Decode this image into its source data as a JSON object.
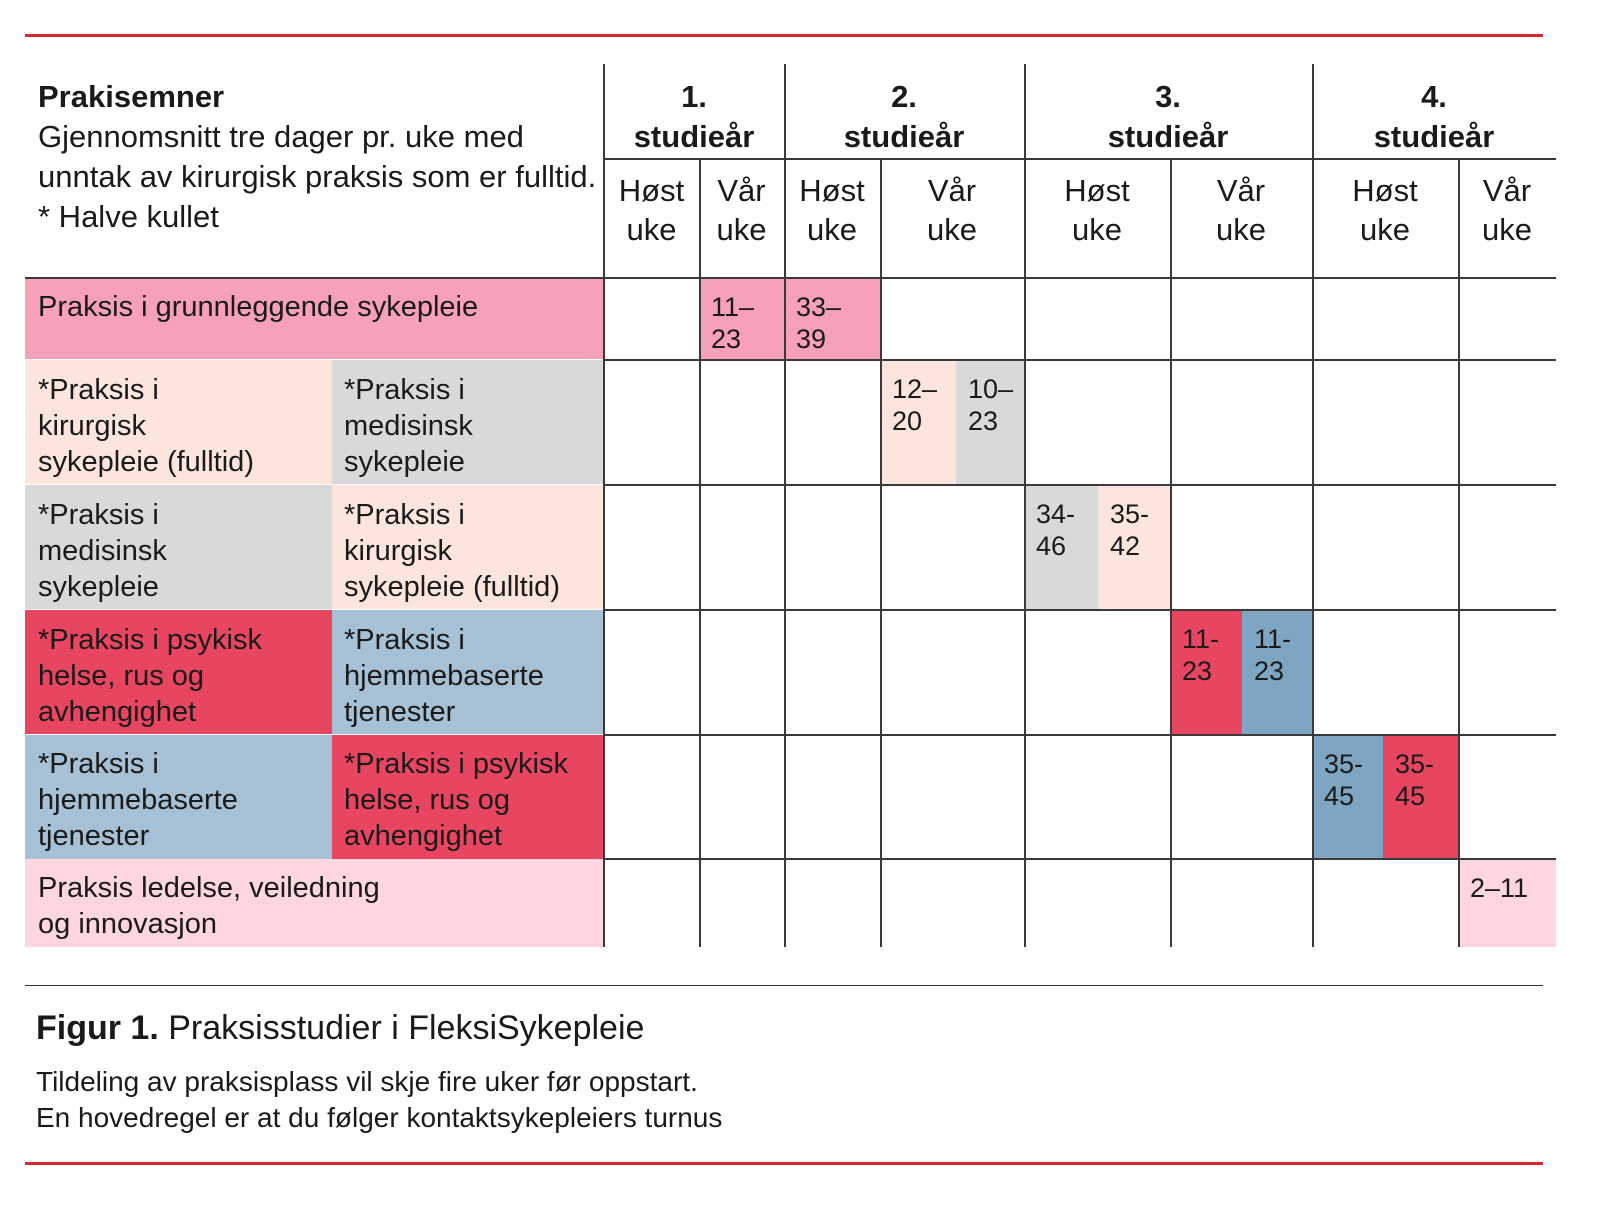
{
  "colors": {
    "accent_red_line": "#d6262e",
    "pink": "#f7a1b8",
    "peach": "#fbe5dd",
    "gray": "#d9d9d9",
    "red": "#e84660",
    "blue_light": "#a6c1d6",
    "blue": "#7ea6c2",
    "pink_light": "#fdd6e0"
  },
  "header": {
    "title": "Prakisemner",
    "description": "Gjennomsnitt tre dager pr. uke med unntak av kirurgisk praksis som er fulltid.",
    "note": "* Halve kullet",
    "years": [
      "1.\nstudieår",
      "2.\nstudieår",
      "3.\nstudieår",
      "4.\nstudieår"
    ],
    "semesters": [
      "Høst\nuke",
      "Vår\nuke",
      "Høst\nuke",
      "Vår\nuke",
      "Høst\nuke",
      "Vår\nuke",
      "Høst\nuke",
      "Vår\nuke"
    ]
  },
  "rows": [
    {
      "labels": [
        "Praksis i grunnleggende sykepleie"
      ],
      "label_colors": [
        "pink"
      ],
      "weeks": [
        "11–\n23",
        "33–\n39"
      ],
      "week_colors": [
        "pink",
        "pink"
      ]
    },
    {
      "labels": [
        "*Praksis i\nkirurgisk\nsykepleie (fulltid)",
        "*Praksis i\nmedisinsk\nsykepleie"
      ],
      "label_colors": [
        "peach",
        "gray"
      ],
      "weeks": [
        "12–\n20",
        "10–\n23"
      ],
      "week_colors": [
        "peach",
        "gray"
      ]
    },
    {
      "labels": [
        "*Praksis i\nmedisinsk\nsykepleie",
        "*Praksis i\nkirurgisk\nsykepleie (fulltid)"
      ],
      "label_colors": [
        "gray",
        "peach"
      ],
      "weeks": [
        "34-\n46",
        "35-\n42"
      ],
      "week_colors": [
        "gray",
        "peach"
      ]
    },
    {
      "labels": [
        "*Praksis i psykisk\nhelse, rus og\navhengighet",
        "*Praksis i\nhjemmebaserte\ntjenester"
      ],
      "label_colors": [
        "red",
        "blue_light"
      ],
      "weeks": [
        "11-\n23",
        "11-\n23"
      ],
      "week_colors": [
        "red",
        "blue"
      ]
    },
    {
      "labels": [
        "*Praksis i\nhjemmebaserte\ntjenester",
        "*Praksis i psykisk\nhelse, rus og\navhengighet"
      ],
      "label_colors": [
        "blue_light",
        "red"
      ],
      "weeks": [
        "35-\n45",
        "35-\n45"
      ],
      "week_colors": [
        "blue",
        "red"
      ]
    },
    {
      "labels": [
        "Praksis ledelse, veiledning\nog innovasjon"
      ],
      "label_colors": [
        "pink_light"
      ],
      "weeks": [
        "2–11"
      ],
      "week_colors": [
        "pink_light"
      ]
    }
  ],
  "caption": {
    "figure_label": "Figur 1.",
    "figure_title": "Praksisstudier i FleksiSykepleie",
    "line1": "Tildeling av praksisplass vil skje fire uker før oppstart.",
    "line2": "En hovedregel er at du følger kontaktsykepleiers turnus"
  }
}
